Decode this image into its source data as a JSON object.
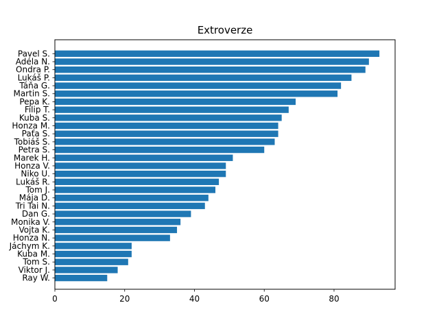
{
  "chart_data": {
    "type": "bar",
    "orientation": "horizontal",
    "title": "Extroverze",
    "xlabel": "",
    "ylabel": "",
    "xlim": [
      0,
      97.5
    ],
    "xticks": [
      0,
      20,
      40,
      60,
      80
    ],
    "grid": false,
    "bar_color": "#1f77b4",
    "categories": [
      "Pavel S.",
      "Adéla N.",
      "Ondra P.",
      "Lukáš P.",
      "Táňa G.",
      "Martin S.",
      "Pepa K.",
      "Filip T.",
      "Kuba S.",
      "Honza M.",
      "Paťa S.",
      "Tobiáš S.",
      "Petra S.",
      "Marek H.",
      "Honza V.",
      "Niko U.",
      "Lukáš R.",
      "Tom J.",
      "Mája D.",
      "Tri Tai N.",
      "Dan G.",
      "Monika V.",
      "Vojta K.",
      "Honza N.",
      "Jáchym K.",
      "Kuba M.",
      "Tom S.",
      "Viktor J.",
      "Ray W."
    ],
    "values": [
      93,
      90,
      89,
      85,
      82,
      81,
      69,
      67,
      65,
      64,
      64,
      63,
      60,
      51,
      49,
      49,
      47,
      46,
      44,
      43,
      39,
      36,
      35,
      33,
      22,
      22,
      21,
      18,
      15
    ]
  }
}
